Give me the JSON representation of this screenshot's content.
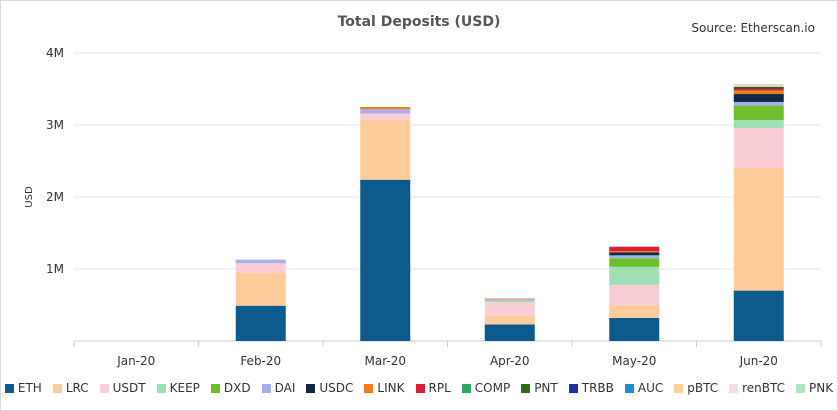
{
  "chart_data": {
    "type": "bar",
    "stacked": true,
    "title": "Total Deposits (USD)",
    "source": "Source: Etherscan.io",
    "xlabel": "",
    "ylabel": "USD",
    "ylim": [
      0,
      4000000
    ],
    "yticks": [
      {
        "value": 1000000,
        "label": "1M"
      },
      {
        "value": 2000000,
        "label": "2M"
      },
      {
        "value": 3000000,
        "label": "3M"
      },
      {
        "value": 4000000,
        "label": "4M"
      }
    ],
    "grid": true,
    "legend_position": "bottom",
    "categories": [
      "Jan-20",
      "Feb-20",
      "Mar-20",
      "Apr-20",
      "May-20",
      "Jun-20"
    ],
    "series": [
      {
        "name": "ETH",
        "color": "#0d5a8c",
        "values": [
          0,
          490000,
          2240000,
          230000,
          320000,
          700000
        ]
      },
      {
        "name": "LRC",
        "color": "#fdcc9a",
        "values": [
          0,
          460000,
          830000,
          120000,
          180000,
          1710000
        ]
      },
      {
        "name": "USDT",
        "color": "#fbced6",
        "values": [
          0,
          130000,
          90000,
          190000,
          280000,
          550000
        ]
      },
      {
        "name": "KEEP",
        "color": "#9fdfb4",
        "values": [
          0,
          0,
          0,
          20000,
          250000,
          110000
        ]
      },
      {
        "name": "DXD",
        "color": "#6cbf2a",
        "values": [
          0,
          0,
          0,
          0,
          120000,
          200000
        ]
      },
      {
        "name": "DAI",
        "color": "#a8aee8",
        "values": [
          0,
          50000,
          60000,
          20000,
          40000,
          50000
        ]
      },
      {
        "name": "USDC",
        "color": "#0d2a48",
        "values": [
          0,
          0,
          0,
          0,
          40000,
          110000
        ]
      },
      {
        "name": "LINK",
        "color": "#f27c1c",
        "values": [
          0,
          0,
          30000,
          10000,
          20000,
          50000
        ]
      },
      {
        "name": "RPL",
        "color": "#d91f3a",
        "values": [
          0,
          0,
          0,
          0,
          60000,
          20000
        ]
      },
      {
        "name": "COMP",
        "color": "#2ea861",
        "values": [
          0,
          0,
          0,
          0,
          0,
          0
        ]
      },
      {
        "name": "PNT",
        "color": "#2f6b19",
        "values": [
          0,
          0,
          0,
          0,
          0,
          20000
        ]
      },
      {
        "name": "TRBB",
        "color": "#1c2fa8",
        "values": [
          0,
          0,
          0,
          0,
          0,
          10000
        ]
      },
      {
        "name": "AUC",
        "color": "#1e8ad6",
        "values": [
          0,
          0,
          0,
          0,
          0,
          0
        ]
      },
      {
        "name": "pBTC",
        "color": "#ffcf98",
        "values": [
          0,
          0,
          0,
          0,
          0,
          20000
        ]
      },
      {
        "name": "renBTC",
        "color": "#fcd9dd",
        "values": [
          0,
          0,
          0,
          0,
          0,
          10000
        ]
      },
      {
        "name": "PNK",
        "color": "#b2e6c0",
        "values": [
          0,
          0,
          0,
          0,
          0,
          10000
        ]
      }
    ]
  }
}
